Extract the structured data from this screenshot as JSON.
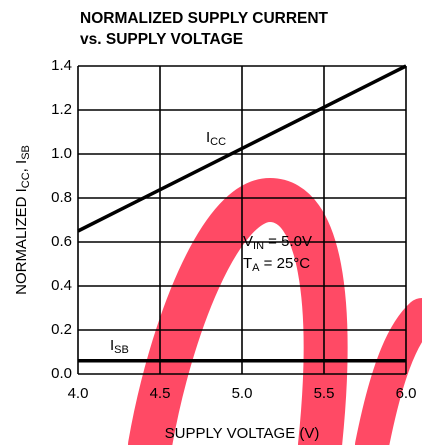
{
  "chart_data": {
    "type": "line",
    "title": [
      "NORMALIZED SUPPLY CURRENT",
      "vs. SUPPLY VOLTAGE"
    ],
    "xlabel": "SUPPLY VOLTAGE (V)",
    "ylabel": [
      "NORMALIZED I",
      "CC",
      ", I",
      "SB"
    ],
    "x": [
      4,
      6
    ],
    "series": [
      {
        "label": [
          "I",
          "CC"
        ],
        "color": "#000000",
        "values": [
          0.65,
          1.4
        ]
      },
      {
        "label": [
          "I",
          "SB"
        ],
        "color": "#000000",
        "values": [
          0.06,
          0.06
        ]
      }
    ],
    "annotations": [
      [
        "V",
        "IN",
        " = 5.0V"
      ],
      [
        "T",
        "A",
        " = 25°C"
      ]
    ],
    "xlim": [
      4,
      6
    ],
    "xticks": [
      {
        "value": 4,
        "label": "4.0"
      },
      {
        "value": 4.5,
        "label": "4.5"
      },
      {
        "value": 5,
        "label": "5.0"
      },
      {
        "value": 5.5,
        "label": "5.5"
      },
      {
        "value": 6,
        "label": "6.0"
      }
    ],
    "ylim": [
      0,
      1.4
    ],
    "yticks": [
      {
        "value": 0,
        "label": "0.0"
      },
      0.2,
      0.4,
      0.6,
      0.8,
      {
        "value": 1,
        "label": "1.0"
      },
      1.2,
      1.4
    ],
    "grid": true
  }
}
